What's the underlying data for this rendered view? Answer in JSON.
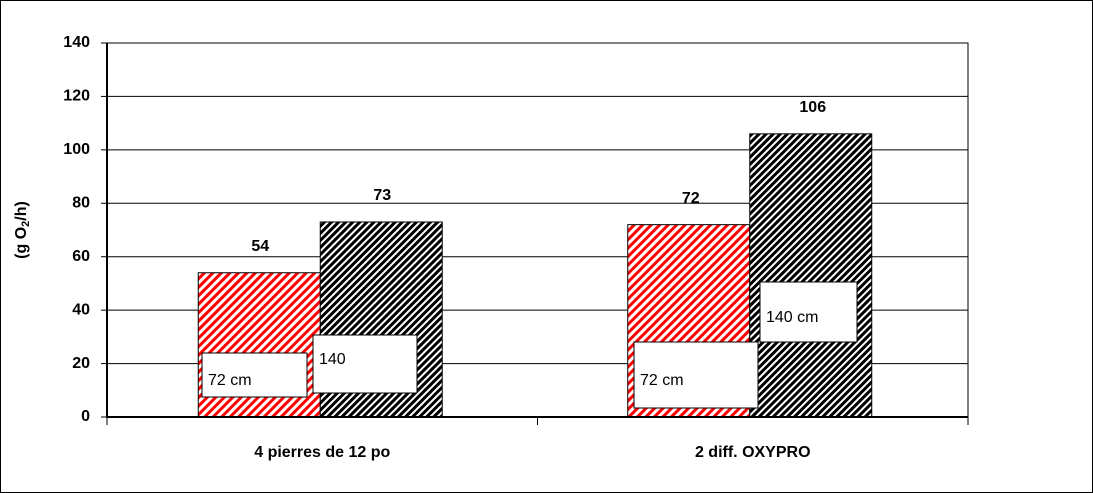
{
  "chart_data": {
    "type": "bar",
    "ylabel": [
      "(g O",
      "2",
      "/h)"
    ],
    "categories": [
      "4 pierres de 12 po",
      "2 diff. OXYPRO"
    ],
    "series": [
      {
        "color": "#ff0000",
        "values": [
          54,
          72
        ]
      },
      {
        "color": "#000000",
        "values": [
          73,
          106
        ]
      }
    ],
    "annotations": [
      "72 cm",
      "140",
      "72 cm",
      "140 cm"
    ],
    "ylim": [
      0,
      140
    ],
    "yticks": [
      0,
      20,
      40,
      60,
      80,
      100,
      120,
      140
    ],
    "grid": true
  }
}
